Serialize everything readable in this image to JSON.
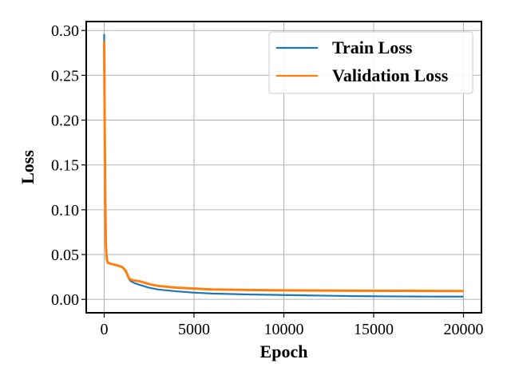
{
  "chart_data": {
    "type": "line",
    "title": "",
    "xlabel": "Epoch",
    "ylabel": "Loss",
    "xlim": [
      -1000,
      21000
    ],
    "ylim": [
      -0.015,
      0.31
    ],
    "xticks": [
      0,
      5000,
      10000,
      15000,
      20000
    ],
    "xtick_labels": [
      "0",
      "5000",
      "10000",
      "15000",
      "20000"
    ],
    "yticks": [
      0.0,
      0.05,
      0.1,
      0.15,
      0.2,
      0.25,
      0.3
    ],
    "ytick_labels": [
      "0.00",
      "0.05",
      "0.10",
      "0.15",
      "0.20",
      "0.25",
      "0.30"
    ],
    "grid": true,
    "legend_position": "top-right",
    "series": [
      {
        "name": "Train Loss",
        "color": "#1f77b4",
        "x": [
          0,
          30,
          60,
          100,
          150,
          200,
          300,
          500,
          700,
          1000,
          1200,
          1300,
          1400,
          1500,
          1700,
          2000,
          2500,
          3000,
          4000,
          5000,
          6000,
          8000,
          10000,
          12000,
          14000,
          16000,
          18000,
          20000
        ],
        "y": [
          0.296,
          0.2,
          0.12,
          0.06,
          0.045,
          0.042,
          0.04,
          0.039,
          0.038,
          0.036,
          0.031,
          0.026,
          0.022,
          0.02,
          0.018,
          0.016,
          0.013,
          0.011,
          0.009,
          0.0075,
          0.0065,
          0.0055,
          0.0048,
          0.0042,
          0.0036,
          0.0033,
          0.0031,
          0.003
        ]
      },
      {
        "name": "Validation Loss",
        "color": "#ff7f0e",
        "x": [
          0,
          30,
          60,
          100,
          150,
          200,
          300,
          500,
          700,
          1000,
          1200,
          1300,
          1400,
          1500,
          1700,
          2000,
          2500,
          3000,
          4000,
          5000,
          6000,
          8000,
          10000,
          12000,
          14000,
          16000,
          18000,
          20000
        ],
        "y": [
          0.288,
          0.19,
          0.11,
          0.058,
          0.044,
          0.041,
          0.04,
          0.039,
          0.038,
          0.036,
          0.032,
          0.027,
          0.023,
          0.022,
          0.021,
          0.02,
          0.017,
          0.015,
          0.013,
          0.012,
          0.011,
          0.0105,
          0.01,
          0.0098,
          0.0096,
          0.0095,
          0.0094,
          0.0093
        ]
      }
    ]
  }
}
